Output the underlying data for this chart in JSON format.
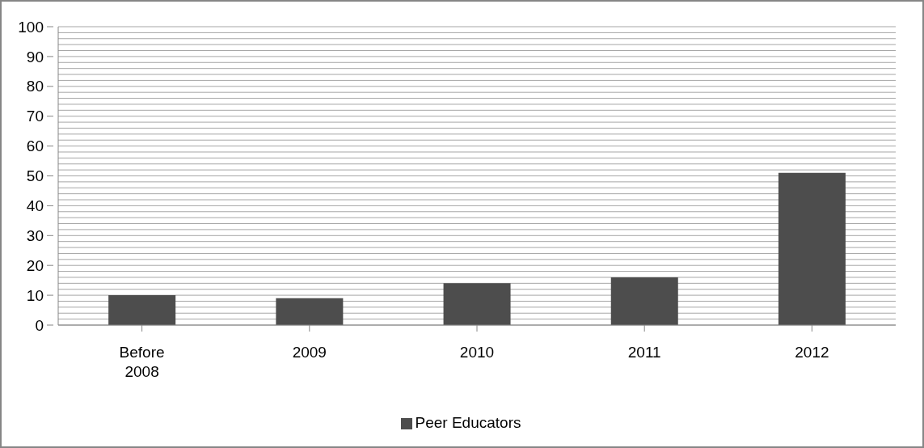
{
  "chart_data": {
    "type": "bar",
    "categories": [
      "Before 2008",
      "2009",
      "2010",
      "2011",
      "2012"
    ],
    "series": [
      {
        "name": "Peer Educators",
        "color": "#4d4d4d",
        "values": [
          10,
          9,
          14,
          16,
          51
        ]
      }
    ],
    "ylim": [
      0,
      100
    ],
    "yticks": [
      0,
      {
        "value": 2,
        "label": null
      },
      {
        "value": 4,
        "label": null
      },
      {
        "value": 6,
        "label": null
      },
      {
        "value": 8,
        "label": null
      },
      10,
      {
        "value": 12,
        "label": null
      },
      {
        "value": 14,
        "label": null
      },
      {
        "value": 16,
        "label": null
      },
      {
        "value": 18,
        "label": null
      },
      20,
      {
        "value": 22,
        "label": null
      },
      {
        "value": 24,
        "label": null
      },
      {
        "value": 26,
        "label": null
      },
      {
        "value": 28,
        "label": null
      },
      30,
      {
        "value": 32,
        "label": null
      },
      {
        "value": 34,
        "label": null
      },
      {
        "value": 36,
        "label": null
      },
      {
        "value": 38,
        "label": null
      },
      40,
      {
        "value": 42,
        "label": null
      },
      {
        "value": 44,
        "label": null
      },
      {
        "value": 46,
        "label": null
      },
      {
        "value": 48,
        "label": null
      },
      50,
      {
        "value": 52,
        "label": null
      },
      {
        "value": 54,
        "label": null
      },
      {
        "value": 56,
        "label": null
      },
      {
        "value": 58,
        "label": null
      },
      60,
      {
        "value": 62,
        "label": null
      },
      {
        "value": 64,
        "label": null
      },
      {
        "value": 66,
        "label": null
      },
      {
        "value": 68,
        "label": null
      },
      70,
      {
        "value": 72,
        "label": null
      },
      {
        "value": 74,
        "label": null
      },
      {
        "value": 76,
        "label": null
      },
      {
        "value": 78,
        "label": null
      },
      80,
      {
        "value": 82,
        "label": null
      },
      {
        "value": 84,
        "label": null
      },
      {
        "value": 86,
        "label": null
      },
      {
        "value": 88,
        "label": null
      },
      90,
      {
        "value": 92,
        "label": null
      },
      {
        "value": 94,
        "label": null
      },
      {
        "value": 96,
        "label": null
      },
      {
        "value": 98,
        "label": null
      },
      100
    ],
    "grid": "y",
    "legend": "bottom"
  }
}
